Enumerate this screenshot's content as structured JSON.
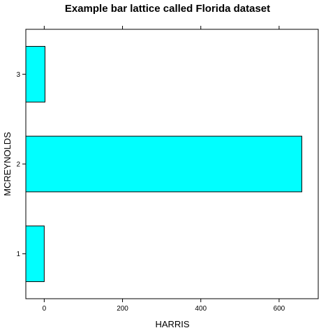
{
  "chart_data": {
    "type": "bar",
    "orientation": "horizontal",
    "title": "Example bar lattice called Florida dataset",
    "xlabel": "HARRIS",
    "ylabel": "MCREYNOLDS",
    "categories": [
      "1",
      "2",
      "3"
    ],
    "values": [
      0,
      658,
      2
    ],
    "xlim": [
      -47,
      700
    ],
    "xticks": [
      0,
      200,
      400,
      600
    ],
    "grid": false,
    "bar_fill": "#00ffff",
    "bar_stroke": "#000000"
  }
}
